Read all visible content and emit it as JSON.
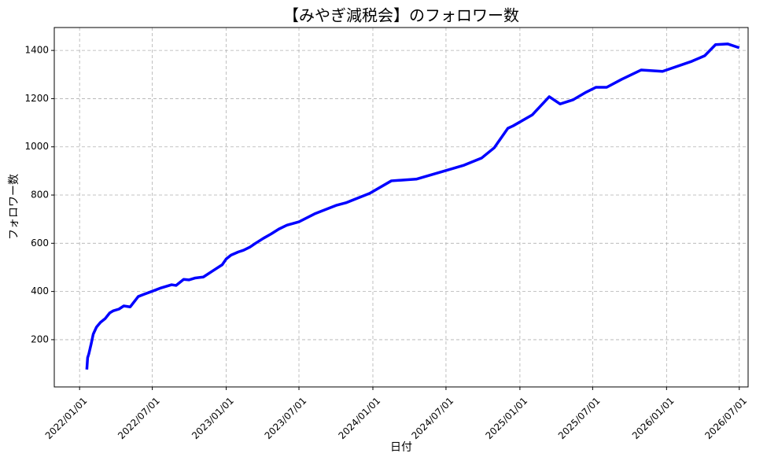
{
  "chart_data": {
    "type": "line",
    "title": "【みやぎ減税会】のフォロワー数",
    "xlabel": "日付",
    "ylabel": "フォロワー数",
    "x": [
      "2022/01/19",
      "2022/01/21",
      "2022/01/24",
      "2022/01/30",
      "2022/02/04",
      "2022/02/12",
      "2022/02/22",
      "2022/03/06",
      "2022/03/17",
      "2022/03/26",
      "2022/04/09",
      "2022/04/21",
      "2022/05/07",
      "2022/05/19",
      "2022/05/27",
      "2022/06/10",
      "2022/07/01",
      "2022/07/23",
      "2022/08/18",
      "2022/08/29",
      "2022/09/17",
      "2022/09/30",
      "2022/10/16",
      "2022/11/05",
      "2022/11/28",
      "2022/12/22",
      "2023/01/01",
      "2023/01/13",
      "2023/01/31",
      "2023/02/13",
      "2023/03/01",
      "2023/03/15",
      "2023/04/03",
      "2023/04/23",
      "2023/05/12",
      "2023/06/01",
      "2023/07/01",
      "2023/08/09",
      "2023/10/03",
      "2023/10/26",
      "2023/12/24",
      "2024/02/16",
      "2024/04/18",
      "2024/07/01",
      "2024/08/15",
      "2024/09/28",
      "2024/10/29",
      "2024/12/02",
      "2024/12/15",
      "2025/02/01",
      "2025/03/15",
      "2025/04/11",
      "2025/05/13",
      "2025/06/15",
      "2025/07/09",
      "2025/08/05",
      "2025/09/11",
      "2025/10/30",
      "2025/12/22",
      "2026/03/05",
      "2026/04/06",
      "2026/05/03",
      "2026/06/02",
      "2026/07/01"
    ],
    "series": [
      {
        "name": "フォロワー数",
        "color": "#0000ff",
        "values": [
          76,
          125,
          141,
          184,
          223,
          252,
          272,
          288,
          311,
          320,
          327,
          340,
          336,
          362,
          379,
          388,
          401,
          415,
          428,
          425,
          450,
          448,
          456,
          460,
          485,
          511,
          535,
          551,
          564,
          571,
          584,
          600,
          620,
          639,
          659,
          675,
          689,
          722,
          758,
          768,
          807,
          859,
          866,
          902,
          924,
          954,
          996,
          1077,
          1087,
          1133,
          1208,
          1178,
          1195,
          1227,
          1247,
          1247,
          1280,
          1319,
          1313,
          1355,
          1378,
          1424,
          1427,
          1411
        ]
      }
    ],
    "xlim": [
      "2021/10/30",
      "2026/07/23"
    ],
    "xticks": [
      "2022/01/01",
      "2022/07/01",
      "2023/01/01",
      "2023/07/01",
      "2024/01/01",
      "2024/07/01",
      "2025/01/01",
      "2025/07/01",
      "2026/01/01",
      "2026/07/01"
    ],
    "ylim": [
      4,
      1495
    ],
    "yticks": [
      200,
      400,
      600,
      800,
      1000,
      1200,
      1400
    ],
    "grid": true
  }
}
